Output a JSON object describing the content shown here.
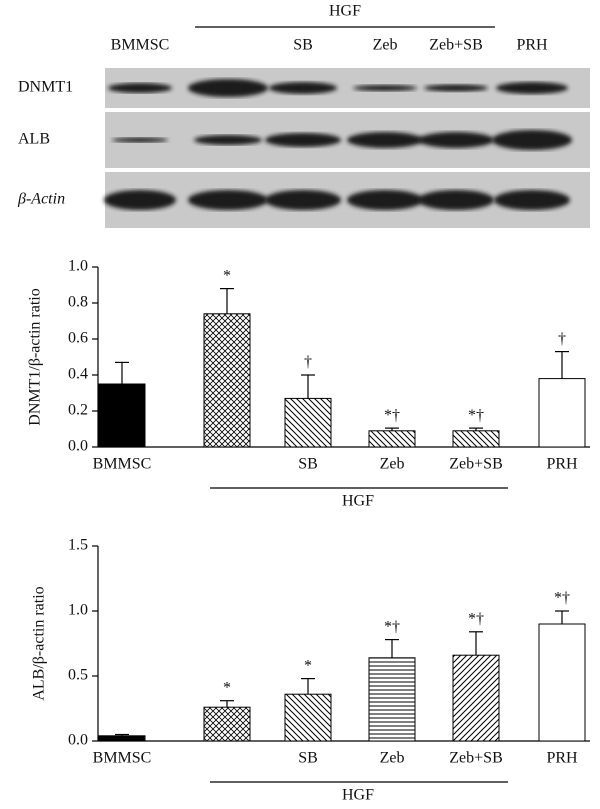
{
  "blot": {
    "group_label": "HGF",
    "lanes": [
      "BMMSC",
      null,
      "SB",
      "Zeb",
      "Zeb+SB",
      "PRH"
    ],
    "rows": [
      "DNMT1",
      "ALB",
      "β-Actin"
    ]
  },
  "chart_data": [
    {
      "type": "bar",
      "ylabel": "DNMT1/β-actin ratio",
      "categories": [
        "BMMSC",
        null,
        "SB",
        "Zeb",
        "Zeb+SB",
        "PRH"
      ],
      "values": [
        0.35,
        0.74,
        0.27,
        0.09,
        0.09,
        0.38
      ],
      "errors": [
        0.12,
        0.14,
        0.13,
        0.015,
        0.015,
        0.15
      ],
      "annotations": [
        null,
        "*",
        "†",
        "*†",
        "*†",
        "†"
      ],
      "patterns": [
        "solid",
        "crosshatch",
        "backslash",
        "backslash",
        "backslash",
        "none"
      ],
      "group_label": "HGF",
      "ylim": [
        0,
        1.0
      ],
      "yticks": [
        {
          "value": 0,
          "label": "0.0"
        },
        0.2,
        0.4,
        0.6,
        0.8,
        {
          "value": 1,
          "label": "1.0"
        }
      ]
    },
    {
      "type": "bar",
      "ylabel": "ALB/β-actin ratio",
      "categories": [
        "BMMSC",
        null,
        "SB",
        "Zeb",
        "Zeb+SB",
        "PRH"
      ],
      "values": [
        0.04,
        0.26,
        0.36,
        0.64,
        0.66,
        0.9
      ],
      "errors": [
        0.01,
        0.05,
        0.12,
        0.14,
        0.18,
        0.1
      ],
      "annotations": [
        null,
        "*",
        "*",
        "*†",
        "*†",
        "*†"
      ],
      "patterns": [
        "solid",
        "crosshatch",
        "backslash",
        "horizontal",
        "slash",
        "none"
      ],
      "group_label": "HGF",
      "ylim": [
        0,
        1.5
      ],
      "yticks": [
        {
          "value": 0,
          "label": "0.0"
        },
        0.5,
        {
          "value": 1,
          "label": "1.0"
        },
        {
          "value": 1.5,
          "label": "1.5"
        }
      ]
    }
  ]
}
